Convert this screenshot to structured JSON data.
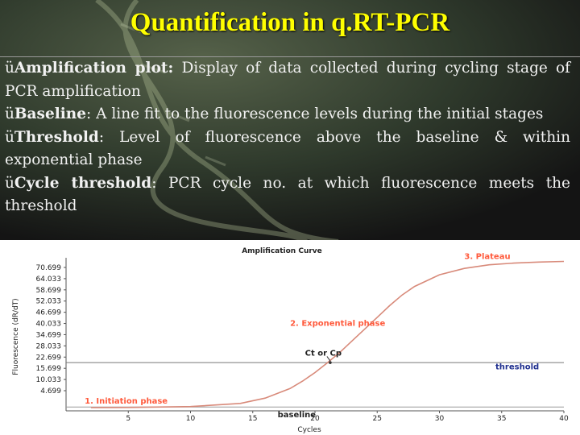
{
  "title": "Quantification in q.RT-PCR",
  "bullets": [
    {
      "check": "ü",
      "term": "Amplification plot:",
      "text": " Display of data collected during cycling stage of PCR amplification"
    },
    {
      "check": "ü",
      "term": "Baseline",
      "text": ": A line fit to the fluorescence levels during the initial stages"
    },
    {
      "check": "ü",
      "term": "Threshold",
      "text": ": Level of fluorescence above the baseline & within exponential phase"
    },
    {
      "check": "ü",
      "term": "Cycle threshold",
      "text": ": PCR cycle no. at which fluorescence meets the threshold"
    }
  ],
  "colors": {
    "title": "#ffff00",
    "curve": "#d88a7a",
    "annotation": "#ff5a3c",
    "threshold_label": "#1f2f8f",
    "baseline_label": "#222222"
  },
  "chart_data": {
    "type": "line",
    "title": "Amplification Curve",
    "xlabel": "Cycles",
    "ylabel": "Fluorescence (dR/dT)",
    "xlim": [
      0,
      40
    ],
    "ylim": [
      0,
      72
    ],
    "x_ticks": [
      5,
      10,
      15,
      20,
      25,
      30,
      35,
      40
    ],
    "y_ticks": [
      "70.699",
      "64.033",
      "58.699",
      "52.033",
      "46.699",
      "40.033",
      "34.699",
      "28.033",
      "22.699",
      "15.699",
      "10.033",
      "4.699"
    ],
    "series": [
      {
        "x": [
          2,
          5,
          10,
          14,
          16,
          18,
          19,
          20,
          21,
          22,
          23,
          24,
          25,
          26,
          27,
          28,
          30,
          32,
          34,
          36,
          38,
          40
        ],
        "y": [
          1.5,
          1.6,
          2.0,
          3.5,
          6,
          10.5,
          14,
          18,
          22.6,
          27.5,
          33,
          38.5,
          44,
          49.5,
          54.5,
          58.5,
          64,
          67,
          68.7,
          69.5,
          70,
          70.3
        ]
      }
    ],
    "threshold": 22.7,
    "baseline": 1.8,
    "annotations": [
      {
        "text": "1. Initiation phase",
        "x": 1.5,
        "y": 3.5
      },
      {
        "text": "2. Exponential phase",
        "x": 18,
        "y": 40
      },
      {
        "text": "3. Plateau",
        "x": 32,
        "y": 71.5
      },
      {
        "text": "Ct or Cp",
        "x": 19.2,
        "y": 26
      },
      {
        "text": "threshold",
        "x": 34.5,
        "y": 19.5
      },
      {
        "text": "baseline",
        "x": 17,
        "y": -3
      }
    ]
  }
}
